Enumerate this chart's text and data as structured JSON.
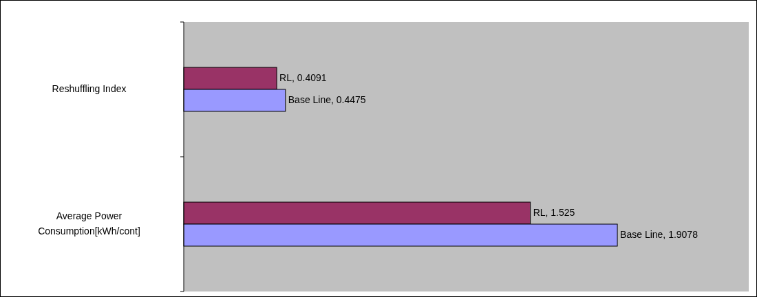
{
  "chart_data": {
    "type": "bar",
    "orientation": "horizontal",
    "categories": [
      "Reshuffling Index",
      "Average Power Consumption[kWh/cont]"
    ],
    "series": [
      {
        "color": "#993366",
        "values": [
          0.4091,
          1.525
        ],
        "value_labels": [
          "RL, 0.4091",
          "RL, 1.525"
        ]
      },
      {
        "color": "#9999ff",
        "values": [
          0.4475,
          1.9078
        ],
        "value_labels": [
          "Base Line, 0.4475",
          "Base Line, 1.9078"
        ]
      }
    ],
    "tick_labels": "y"
  }
}
